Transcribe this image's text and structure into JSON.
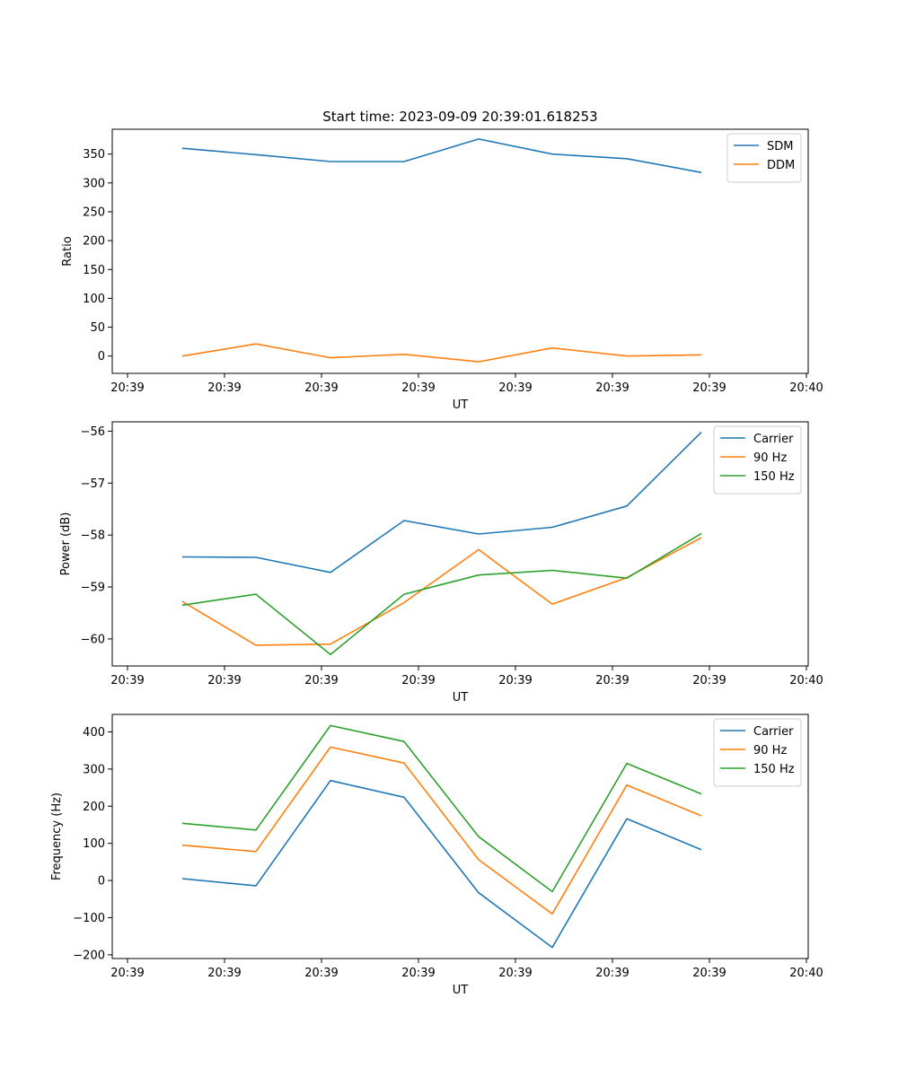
{
  "chart_data": [
    {
      "type": "line",
      "title": "Start time: 2023-09-09 20:39:01.618253",
      "xlabel": "UT",
      "ylabel": "Ratio",
      "xticklabels": [
        "20:39",
        "20:39",
        "20:39",
        "20:39",
        "20:39",
        "20:39",
        "20:39",
        "20:40"
      ],
      "ylim": [
        -30,
        393
      ],
      "yticks": [
        0,
        50,
        100,
        150,
        200,
        250,
        300,
        350
      ],
      "legend_position": "top-right",
      "x_sample_index": [
        0,
        1,
        2,
        3,
        4,
        5,
        6,
        7
      ],
      "series": [
        {
          "name": "SDM",
          "color": "#1f77b4",
          "values": [
            360,
            349,
            337,
            337,
            376,
            350,
            342,
            318
          ]
        },
        {
          "name": "DDM",
          "color": "#ff7f0e",
          "values": [
            0,
            21,
            -3,
            3,
            -10,
            14,
            0,
            2
          ]
        }
      ]
    },
    {
      "type": "line",
      "title": "",
      "xlabel": "UT",
      "ylabel": "Power (dB)",
      "xticklabels": [
        "20:39",
        "20:39",
        "20:39",
        "20:39",
        "20:39",
        "20:39",
        "20:39",
        "20:40"
      ],
      "ylim": [
        -60.52,
        -55.82
      ],
      "yticks": [
        -60,
        -59,
        -58,
        -57,
        -56
      ],
      "legend_position": "top-right",
      "x_sample_index": [
        0,
        1,
        2,
        3,
        4,
        5,
        6,
        7
      ],
      "series": [
        {
          "name": "Carrier",
          "color": "#1f77b4",
          "values": [
            -58.42,
            -58.43,
            -58.72,
            -57.72,
            -57.98,
            -57.85,
            -57.44,
            -56.02
          ]
        },
        {
          "name": "90 Hz",
          "color": "#ff7f0e",
          "values": [
            -59.28,
            -60.12,
            -60.1,
            -59.3,
            -58.28,
            -59.33,
            -58.82,
            -58.05
          ]
        },
        {
          "name": "150 Hz",
          "color": "#2ca02c",
          "values": [
            -59.35,
            -59.14,
            -60.3,
            -59.14,
            -58.77,
            -58.68,
            -58.83,
            -57.97
          ]
        }
      ]
    },
    {
      "type": "line",
      "title": "",
      "xlabel": "UT",
      "ylabel": "Frequency (Hz)",
      "xticklabels": [
        "20:39",
        "20:39",
        "20:39",
        "20:39",
        "20:39",
        "20:39",
        "20:39",
        "20:40"
      ],
      "ylim": [
        -210,
        447
      ],
      "yticks": [
        -200,
        -100,
        0,
        100,
        200,
        300,
        400
      ],
      "legend_position": "top-right",
      "x_sample_index": [
        0,
        1,
        2,
        3,
        4,
        5,
        6,
        7
      ],
      "series": [
        {
          "name": "Carrier",
          "color": "#1f77b4",
          "values": [
            5,
            -14,
            269,
            224,
            -33,
            -180,
            166,
            83
          ]
        },
        {
          "name": "90 Hz",
          "color": "#ff7f0e",
          "values": [
            95,
            78,
            359,
            316,
            56,
            -90,
            257,
            174
          ]
        },
        {
          "name": "150 Hz",
          "color": "#2ca02c",
          "values": [
            154,
            136,
            417,
            374,
            118,
            -30,
            315,
            233
          ]
        }
      ]
    }
  ]
}
